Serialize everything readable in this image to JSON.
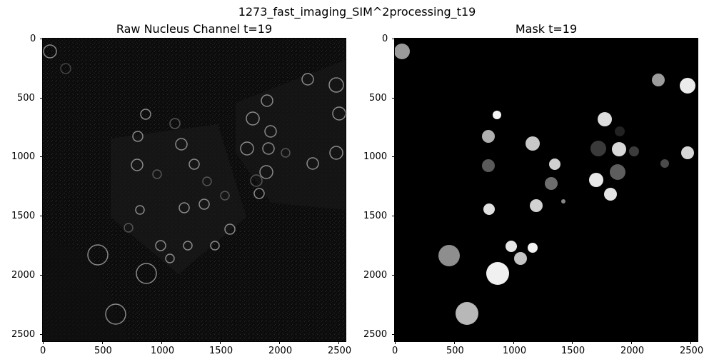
{
  "figure": {
    "title": "1273_fast_imaging_SIM^2processing_t19"
  },
  "panels": [
    {
      "id": "raw",
      "title": "Raw Nucleus Channel t=19",
      "x_ticks": [
        "0",
        "500",
        "1000",
        "1500",
        "2000",
        "2500"
      ],
      "y_ticks": [
        "0",
        "500",
        "1000",
        "1500",
        "2000",
        "2500"
      ]
    },
    {
      "id": "mask",
      "title": "Mask t=19",
      "x_ticks": [
        "0",
        "500",
        "1000",
        "1500",
        "2000",
        "2500"
      ],
      "y_ticks": [
        "0",
        "500",
        "1000",
        "1500",
        "2000",
        "2500"
      ]
    }
  ]
}
